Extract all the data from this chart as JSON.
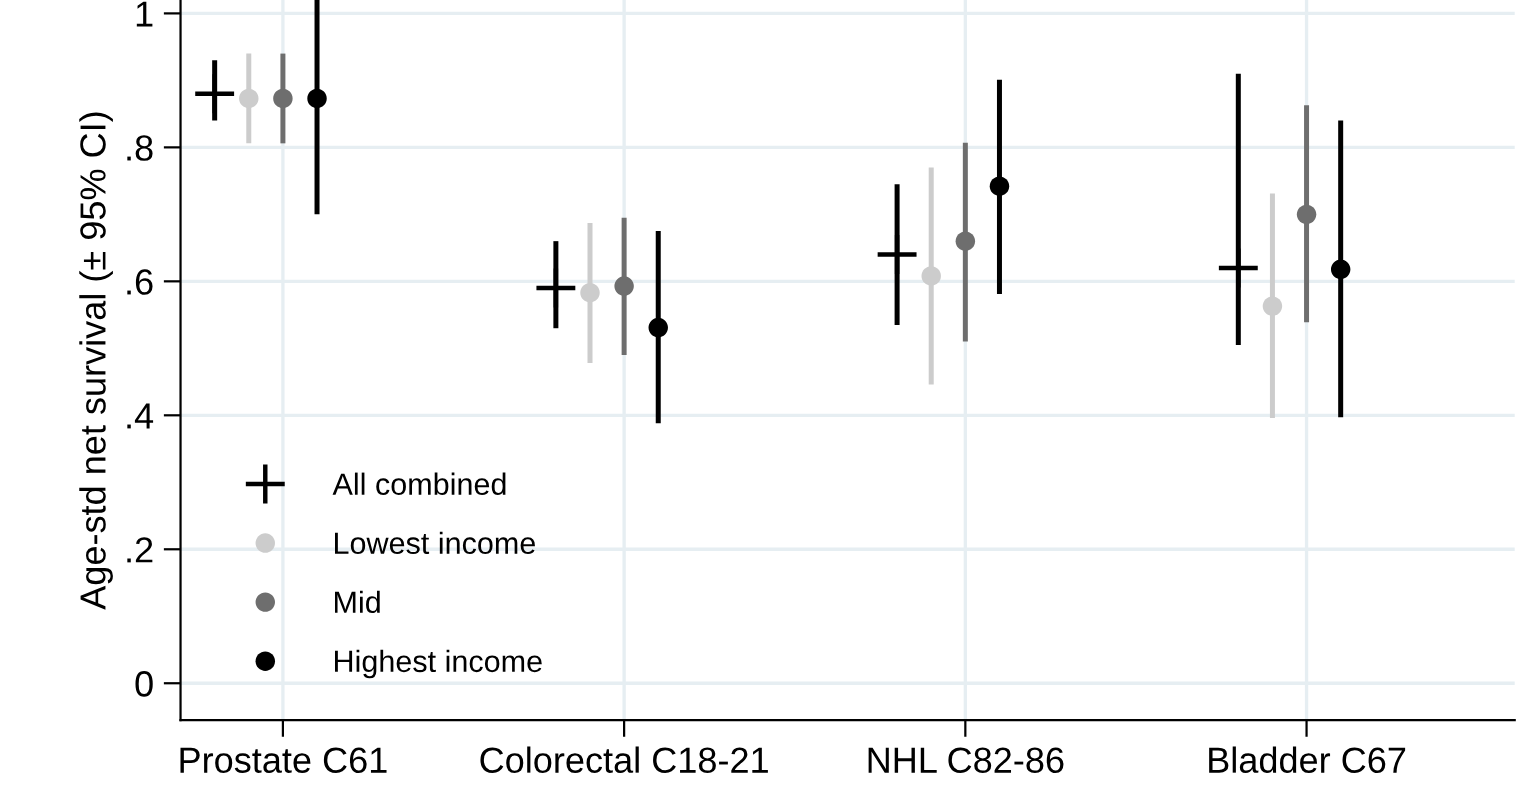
{
  "chart_data": {
    "type": "scatter",
    "ylabel": "Age-std net survival (± 95% CI)",
    "categories": [
      "Prostate C61",
      "Colorectal C18-21",
      "NHL C82-86",
      "Bladder C67"
    ],
    "series": [
      {
        "name": "All combined",
        "color": "#000000",
        "marker": "cross",
        "values": [
          0.88,
          0.59,
          0.64,
          0.62
        ],
        "errors": [
          [
            0.84,
            0.93
          ],
          [
            0.53,
            0.66
          ],
          [
            0.535,
            0.745
          ],
          [
            0.505,
            0.91
          ]
        ]
      },
      {
        "name": "Lowest income",
        "color": "#cccccc",
        "marker": "circle",
        "values": [
          0.873,
          0.583,
          0.608,
          0.563
        ],
        "errors": [
          [
            0.806,
            0.94
          ],
          [
            0.478,
            0.687
          ],
          [
            0.446,
            0.77
          ],
          [
            0.396,
            0.731
          ]
        ]
      },
      {
        "name": "Mid",
        "color": "#6e6e6e",
        "marker": "circle",
        "values": [
          0.873,
          0.593,
          0.66,
          0.7
        ],
        "errors": [
          [
            0.806,
            0.94
          ],
          [
            0.49,
            0.695
          ],
          [
            0.51,
            0.807
          ],
          [
            0.539,
            0.863
          ]
        ]
      },
      {
        "name": "Highest income",
        "color": "#000000",
        "marker": "circle",
        "values": [
          0.873,
          0.531,
          0.742,
          0.618
        ],
        "errors": [
          [
            0.7,
            1.02
          ],
          [
            0.388,
            0.675
          ],
          [
            0.581,
            0.901
          ],
          [
            0.397,
            0.84
          ]
        ]
      }
    ],
    "ylim": [
      -0.055,
      1.02
    ],
    "yticks": [
      {
        "value": 0,
        "label": "0"
      },
      {
        "value": 0.2,
        "label": ".2"
      },
      {
        "value": 0.4,
        "label": ".4"
      },
      {
        "value": 0.6,
        "label": ".6"
      },
      {
        "value": 0.8,
        "label": ".8"
      },
      {
        "value": 1,
        "label": "1"
      }
    ],
    "grid": true,
    "legend": "bottom left"
  }
}
